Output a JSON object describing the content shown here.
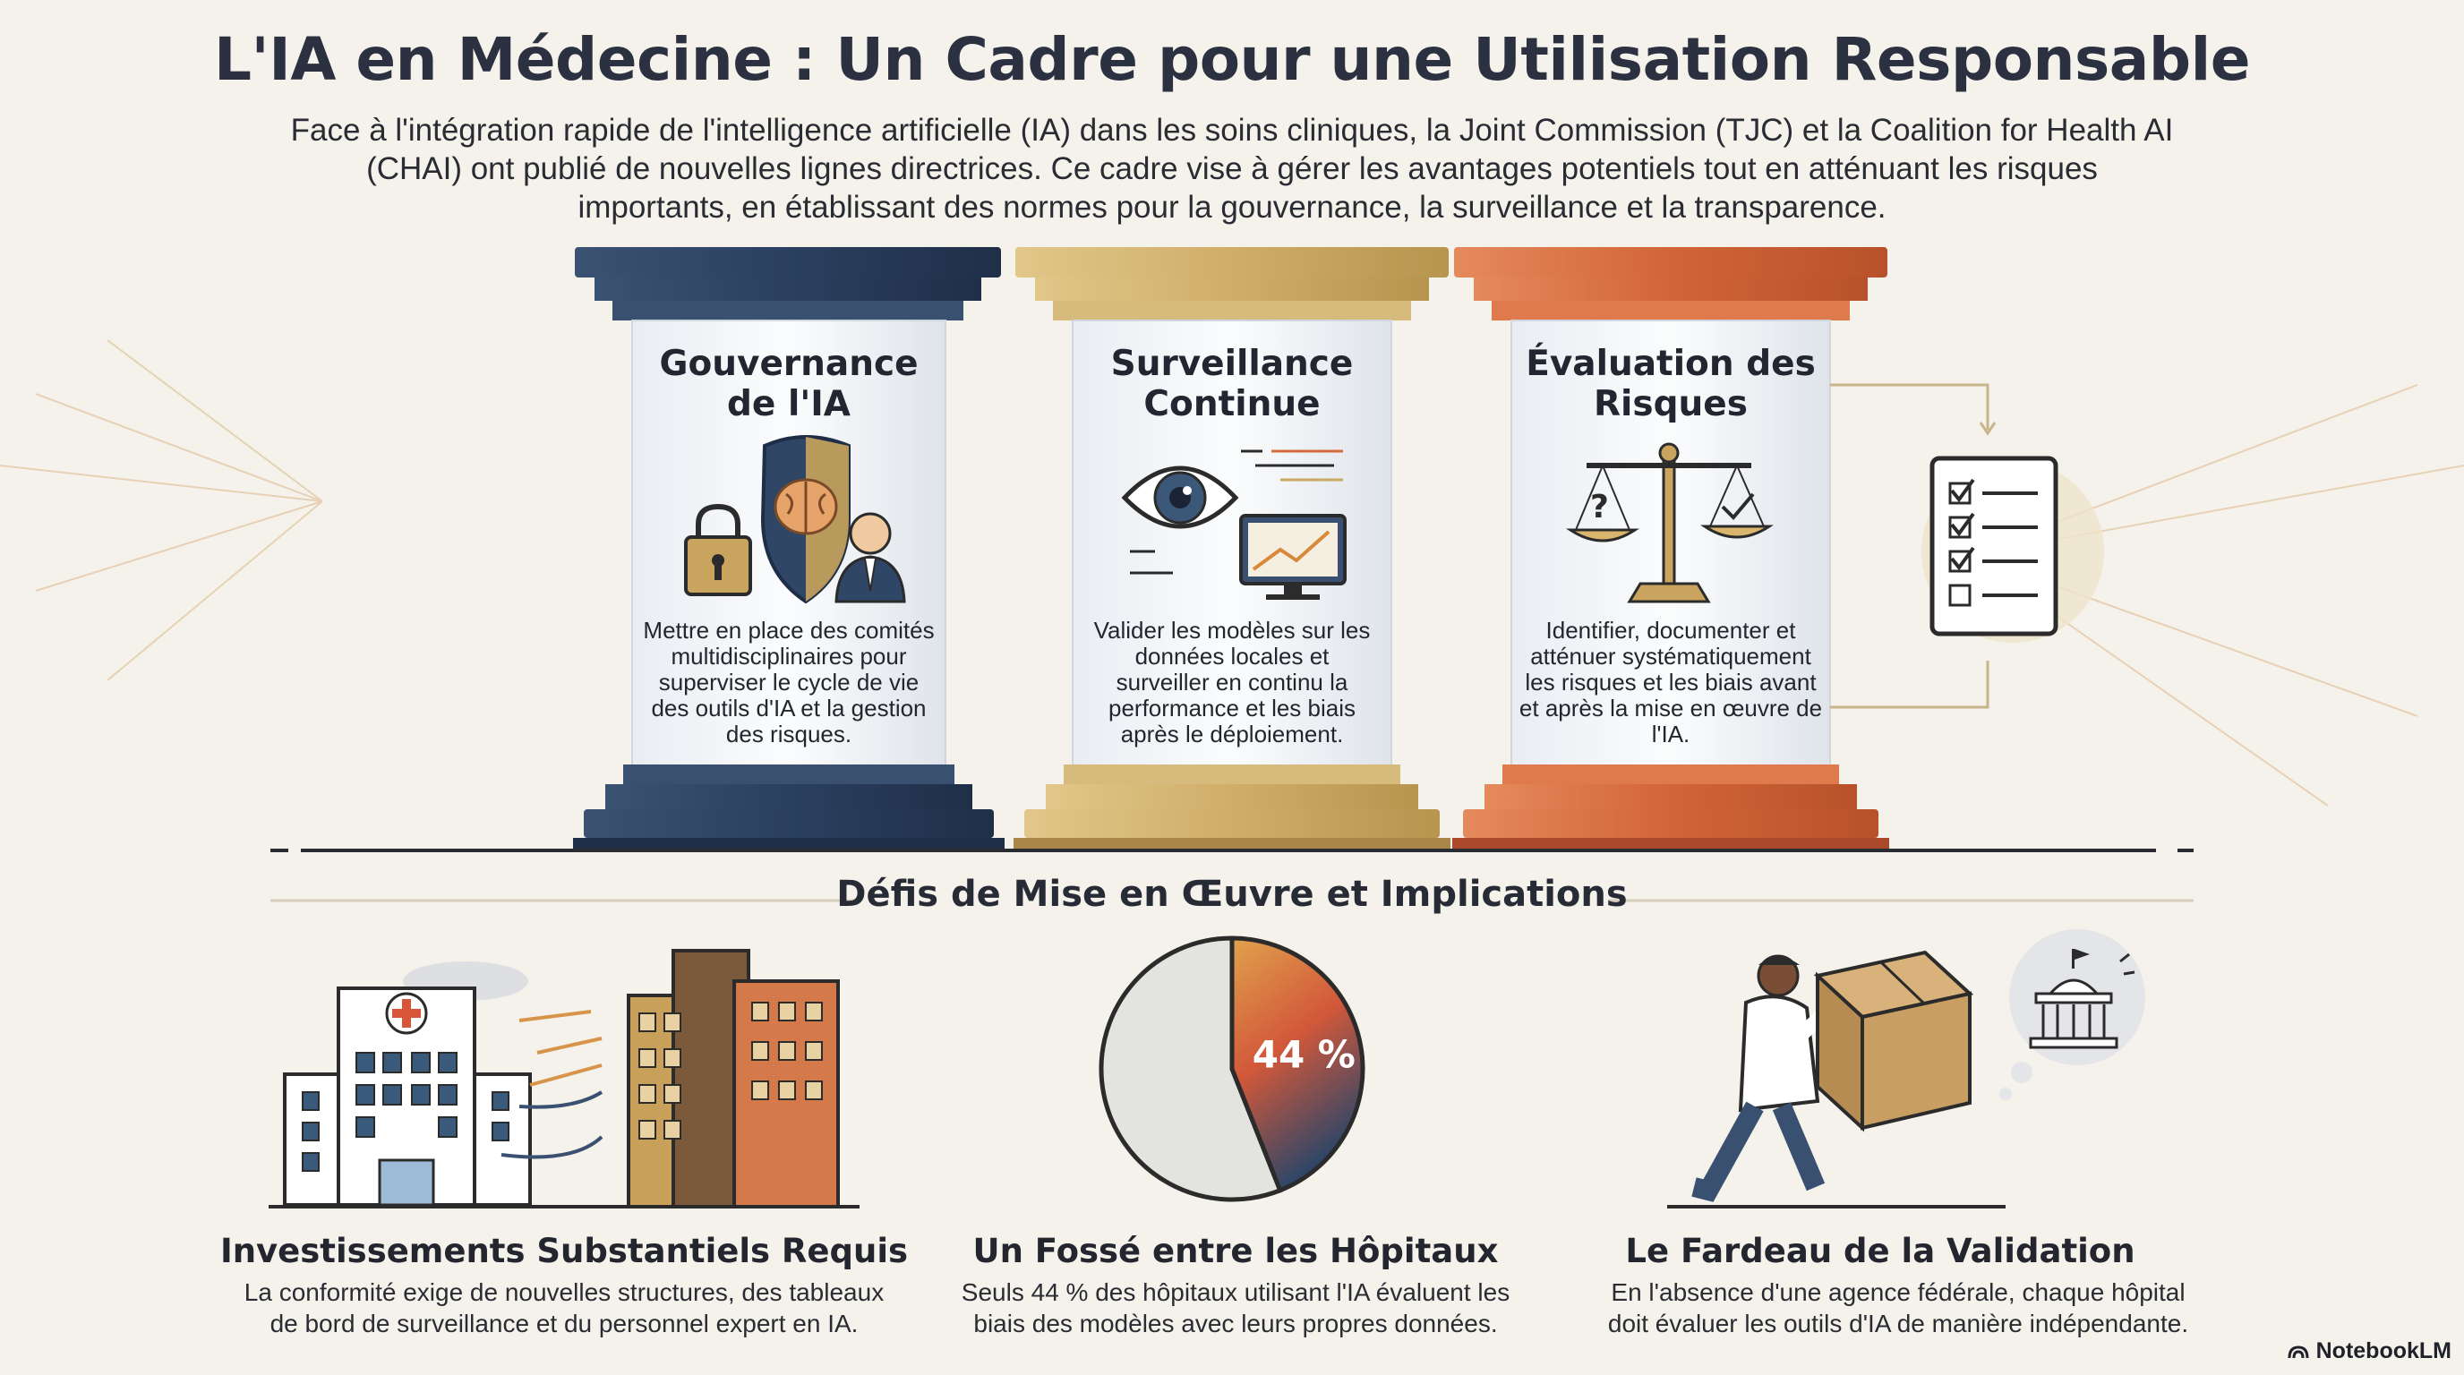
{
  "header": {
    "title": "L'IA en Médecine : Un Cadre pour une Utilisation Responsable",
    "intro": "Face à l'intégration rapide de l'intelligence artificielle (IA) dans les soins cliniques, la Joint Commission (TJC) et la Coalition for Health AI (CHAI) ont publié de nouvelles lignes directrices. Ce cadre vise à gérer les avantages potentiels tout en atténuant les risques importants, en établissant des normes pour la gouvernance, la surveillance et la transparence."
  },
  "pillars": [
    {
      "title": "Gouvernance de l'IA",
      "description": "Mettre en place des comités multidisciplinaires pour superviser le cycle de vie des outils d'IA et la gestion des risques.",
      "color": "#2f4666",
      "icons": [
        "lock-icon",
        "shield-brain-icon",
        "person-icon"
      ]
    },
    {
      "title": "Surveillance Continue",
      "description": "Valider les modèles sur les données locales et surveiller en continu la performance et les biais après le déploiement.",
      "color": "#c9a862",
      "icons": [
        "eye-icon",
        "monitor-chart-icon"
      ]
    },
    {
      "title": "Évaluation des Risques",
      "description": "Identifier, documenter et atténuer systématiquement les risques et les biais avant et après la mise en œuvre de l'IA.",
      "color": "#d36a3c",
      "icons": [
        "balance-scale-icon"
      ]
    }
  ],
  "section": {
    "heading": "Défis de Mise en Œuvre et Implications"
  },
  "challenges": [
    {
      "title": "Investissements Substantiels Requis",
      "description": "La conformité exige de nouvelles structures, des tableaux de bord de surveillance et du personnel expert en IA."
    },
    {
      "title": "Un Fossé entre les Hôpitaux",
      "description": "Seuls 44 % des hôpitaux utilisant l'IA évaluent les biais des modèles avec leurs propres données."
    },
    {
      "title": "Le Fardeau de la Validation",
      "description": "En l'absence d'une agence fédérale, chaque hôpital doit évaluer les outils d'IA de manière indépendante."
    }
  ],
  "chart_data": {
    "type": "pie",
    "values": [
      44,
      56
    ],
    "labels": [
      "44 %",
      ""
    ],
    "colors": [
      "#c85a3a",
      "#e3e3e0"
    ]
  },
  "brand": {
    "name": "NotebookLM"
  }
}
